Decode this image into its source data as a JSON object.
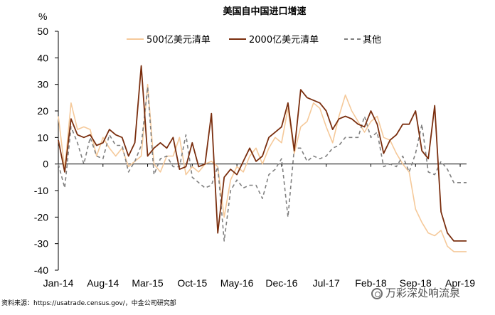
{
  "chart_data": {
    "type": "line",
    "title": "美国自中国进口增速",
    "ylabel": "%",
    "xlabel": "",
    "ylim": [
      -40,
      50
    ],
    "yticks": [
      -40,
      -30,
      -20,
      -10,
      0,
      10,
      20,
      30,
      40,
      50
    ],
    "xtick_labels": [
      "Jan-14",
      "Aug-14",
      "Mar-15",
      "Oct-15",
      "May-16",
      "Dec-16",
      "Jul-17",
      "Feb-18",
      "Sep-18",
      "Apr-19"
    ],
    "xtick_index": [
      0,
      7,
      14,
      21,
      28,
      35,
      42,
      49,
      56,
      63
    ],
    "x": [
      "Jan-14",
      "Feb-14",
      "Mar-14",
      "Apr-14",
      "May-14",
      "Jun-14",
      "Jul-14",
      "Aug-14",
      "Sep-14",
      "Oct-14",
      "Nov-14",
      "Dec-14",
      "Jan-15",
      "Feb-15",
      "Mar-15",
      "Apr-15",
      "May-15",
      "Jun-15",
      "Jul-15",
      "Aug-15",
      "Sep-15",
      "Oct-15",
      "Nov-15",
      "Dec-15",
      "Jan-16",
      "Feb-16",
      "Mar-16",
      "Apr-16",
      "May-16",
      "Jun-16",
      "Jul-16",
      "Aug-16",
      "Sep-16",
      "Oct-16",
      "Nov-16",
      "Dec-16",
      "Jan-17",
      "Feb-17",
      "Mar-17",
      "Apr-17",
      "May-17",
      "Jun-17",
      "Jul-17",
      "Aug-17",
      "Sep-17",
      "Oct-17",
      "Nov-17",
      "Dec-17",
      "Jan-18",
      "Feb-18",
      "Mar-18",
      "Apr-18",
      "May-18",
      "Jun-18",
      "Jul-18",
      "Aug-18",
      "Sep-18",
      "Oct-18",
      "Nov-18",
      "Dec-18",
      "Jan-19",
      "Feb-19",
      "Mar-19",
      "Apr-19",
      "May-19"
    ],
    "grid": false,
    "legend_position": "top-right",
    "series": [
      {
        "name": "500亿美元清单",
        "color": "#f5c99a",
        "dash": "solid",
        "values": [
          18,
          -2,
          23,
          13,
          14,
          13,
          3,
          10,
          6,
          3,
          6,
          -1,
          1,
          3,
          30,
          0,
          -3,
          3,
          3,
          10,
          -4,
          -1,
          -3,
          0,
          1,
          -1,
          -20,
          -6,
          -1,
          -3,
          3,
          6,
          0,
          6,
          10,
          8,
          21,
          4,
          14,
          16,
          23,
          21,
          14,
          8,
          18,
          26,
          20,
          16,
          12,
          16,
          18,
          10,
          9,
          4,
          0,
          -3,
          -17,
          -22,
          -26,
          -27,
          -25,
          -31,
          -33,
          -33,
          -33
        ]
      },
      {
        "name": "2000亿美元清单",
        "color": "#7a2e0e",
        "dash": "solid",
        "values": [
          9,
          -3,
          17,
          11,
          10,
          11,
          7,
          8,
          13,
          11,
          10,
          3,
          8,
          37,
          3,
          6,
          8,
          6,
          10,
          -2,
          -1,
          8,
          -1,
          0,
          19,
          -26,
          -5,
          -2,
          -4,
          1,
          6,
          1,
          3,
          10,
          12,
          14,
          23,
          5,
          28,
          25,
          24,
          23,
          20,
          13,
          17,
          18,
          17,
          15,
          14,
          20,
          15,
          4,
          9,
          11,
          15,
          15,
          20,
          5,
          2,
          22,
          -18,
          -26,
          -29,
          -29,
          -29
        ]
      },
      {
        "name": "其他",
        "color": "#808080",
        "dash": "dashed",
        "values": [
          0,
          -9,
          14,
          8,
          0,
          10,
          3,
          2,
          11,
          7,
          7,
          -3,
          1,
          7,
          29,
          -4,
          2,
          3,
          -1,
          -1,
          11,
          -5,
          -7,
          -9,
          -8,
          -1,
          -29,
          -10,
          -6,
          -9,
          -8,
          -8,
          -13,
          -4,
          -2,
          2,
          -20,
          6,
          6,
          1,
          3,
          2,
          3,
          6,
          7,
          10,
          10,
          10,
          18,
          10,
          12,
          -1,
          0,
          -1,
          3,
          -3,
          4,
          15,
          -3,
          -4,
          1,
          -2,
          -7,
          -7,
          -7
        ]
      }
    ]
  },
  "source_text": "资料来源：https://usatrade.census.gov/，中金公司研究部",
  "watermark_text": "万彩深处响流泉",
  "watermark_icon": "wechat-channel-icon"
}
